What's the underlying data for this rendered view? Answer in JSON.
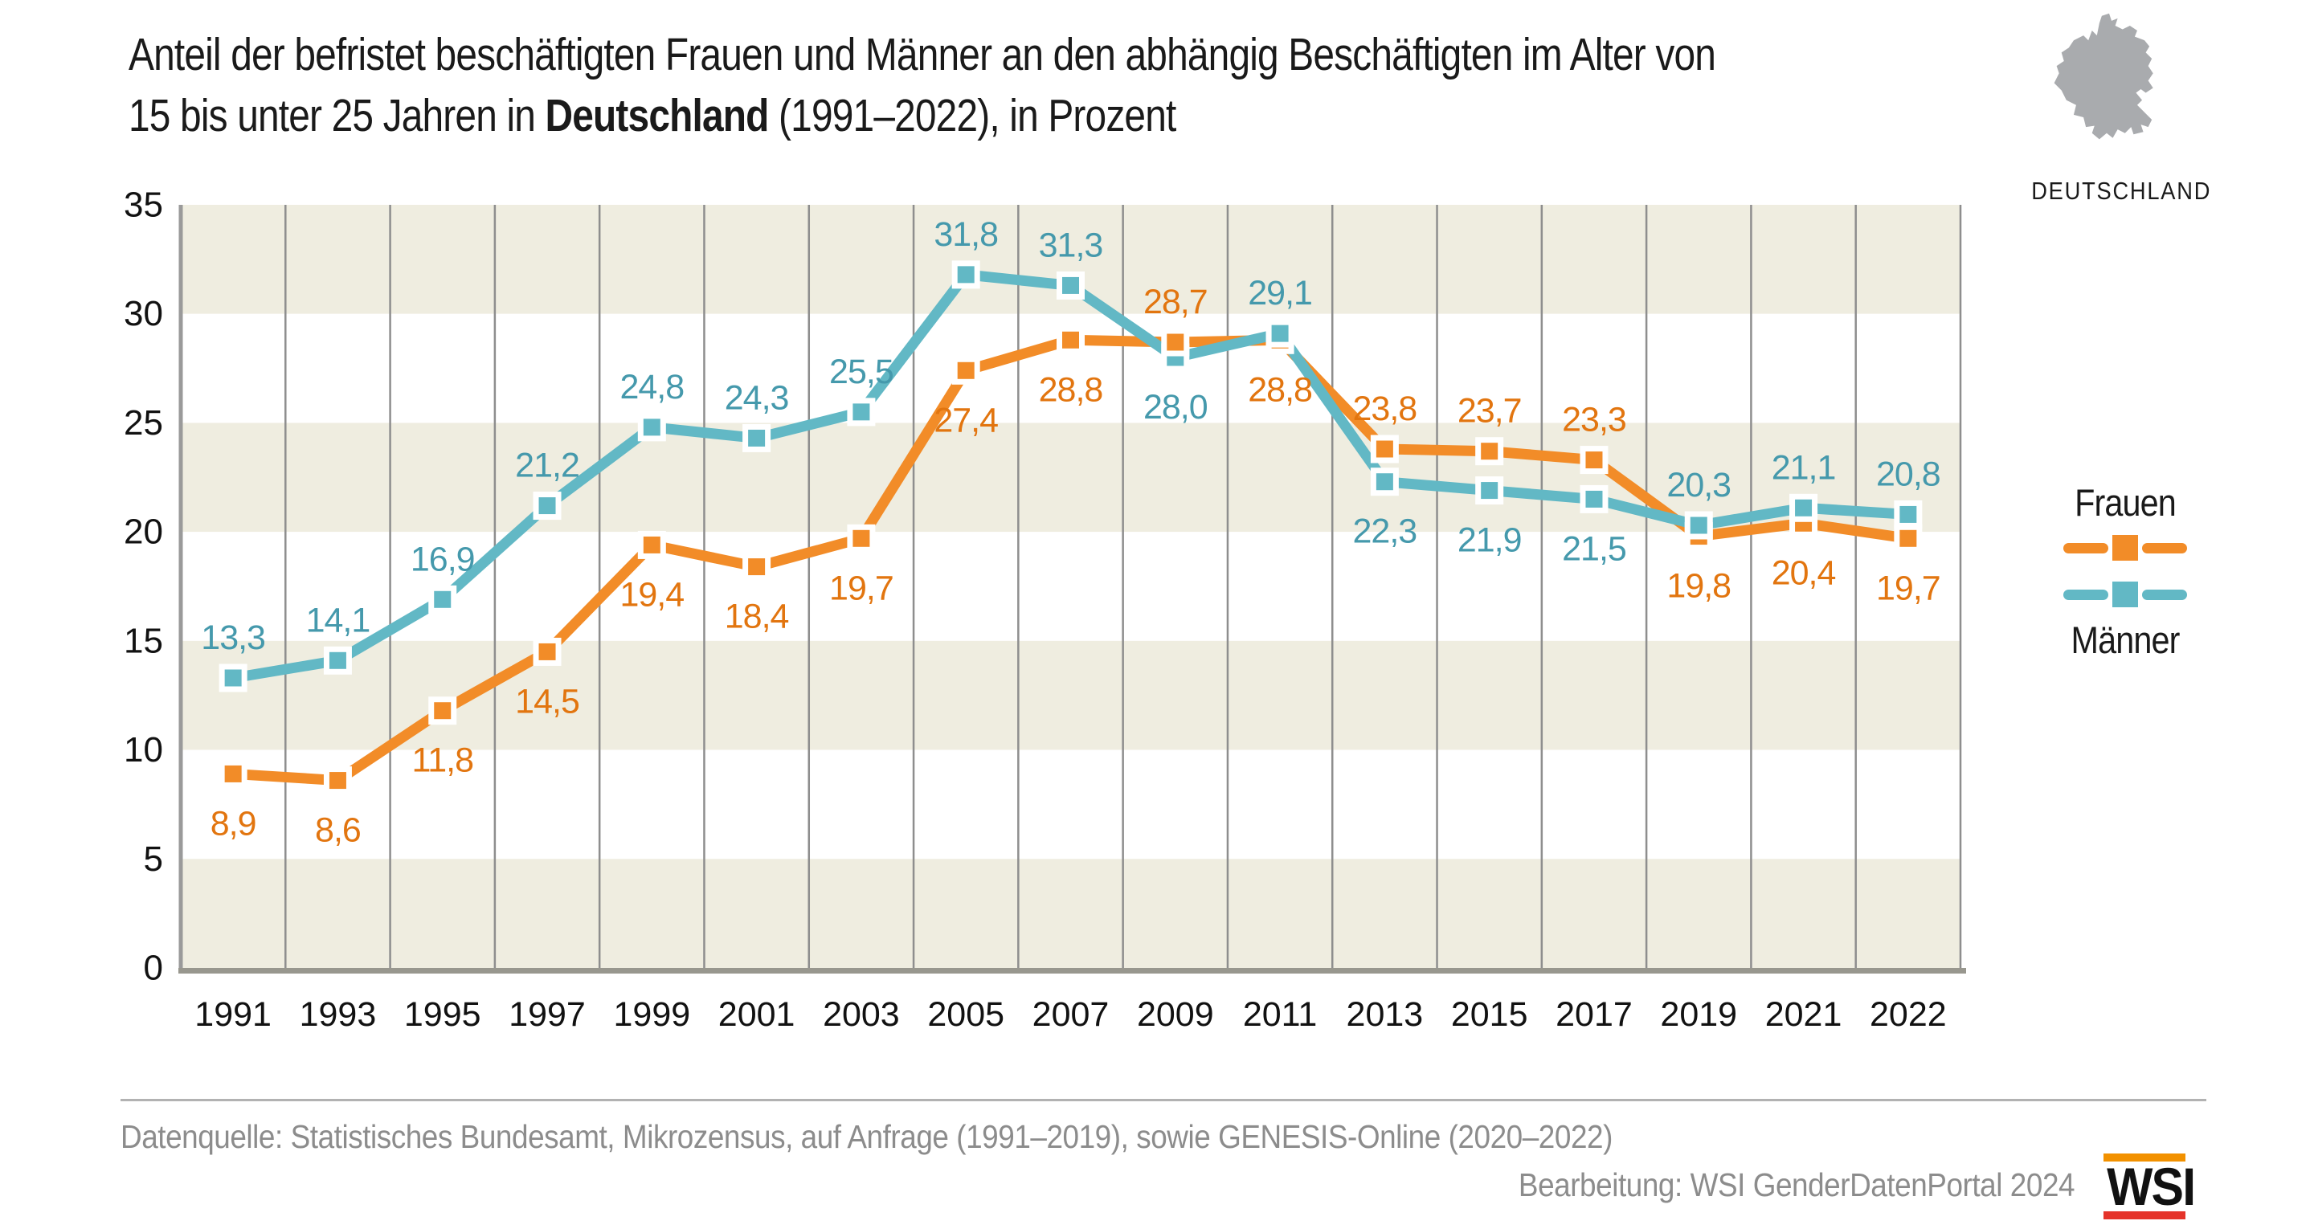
{
  "title": {
    "line1": "Anteil der befristet beschäftigten Frauen und Männer an den abhängig Beschäftigten im Alter von",
    "line2_pre": "15 bis unter 25 Jahren in ",
    "line2_bold": "Deutschland",
    "line2_post": " (1991–2022), in Prozent"
  },
  "brand": {
    "caption": "DEUTSCHLAND",
    "map_color": "#a9abae"
  },
  "legend": {
    "frauen_label": "Frauen",
    "maenner_label": "Männer"
  },
  "footer": {
    "source": "Datenquelle: Statistisches Bundesamt, Mikrozensus, auf Anfrage (1991–2019), sowie GENESIS-Online (2020–2022)",
    "credit": "Bearbeitung: WSI GenderDatenPortal 2024",
    "logo_text": "WSI",
    "logo_bar_top_color": "#f29100",
    "logo_bar_bottom_color": "#e5332a"
  },
  "chart_data": {
    "type": "line",
    "categories": [
      "1991",
      "1993",
      "1995",
      "1997",
      "1999",
      "2001",
      "2003",
      "2005",
      "2007",
      "2009",
      "2011",
      "2013",
      "2015",
      "2017",
      "2019",
      "2021",
      "2022"
    ],
    "series": [
      {
        "name": "Frauen",
        "color": "#f28c28",
        "label_color": "#e2750f",
        "values": [
          8.9,
          8.6,
          11.8,
          14.5,
          19.4,
          18.4,
          19.7,
          27.4,
          28.8,
          28.7,
          28.8,
          23.8,
          23.7,
          23.3,
          19.8,
          20.4,
          19.7
        ],
        "label_side": [
          "below",
          "below",
          "below",
          "below",
          "below",
          "below",
          "below",
          "below",
          "below",
          "above",
          "below",
          "above",
          "above",
          "above",
          "below",
          "below",
          "below"
        ]
      },
      {
        "name": "Männer",
        "color": "#62b8c5",
        "label_color": "#4599ac",
        "values": [
          13.3,
          14.1,
          16.9,
          21.2,
          24.8,
          24.3,
          25.5,
          31.8,
          31.3,
          28.0,
          29.1,
          22.3,
          21.9,
          21.5,
          20.3,
          21.1,
          20.8
        ],
        "label_side": [
          "above",
          "above",
          "above",
          "above",
          "above",
          "above",
          "above",
          "above",
          "above",
          "below",
          "above",
          "below",
          "below",
          "below",
          "above",
          "above",
          "above"
        ]
      }
    ],
    "ylabel": "",
    "xlabel": "",
    "ylim": [
      0,
      35
    ],
    "yticks": [
      0,
      5,
      10,
      15,
      20,
      25,
      30,
      35
    ],
    "decimal_separator": ",",
    "grid": "vertical-category-boundaries",
    "plot_band_colors": [
      "#efede0",
      "#ffffff"
    ],
    "grid_color": "#8e8e8e",
    "axis_color": "#98978e",
    "legend_position": "right"
  }
}
